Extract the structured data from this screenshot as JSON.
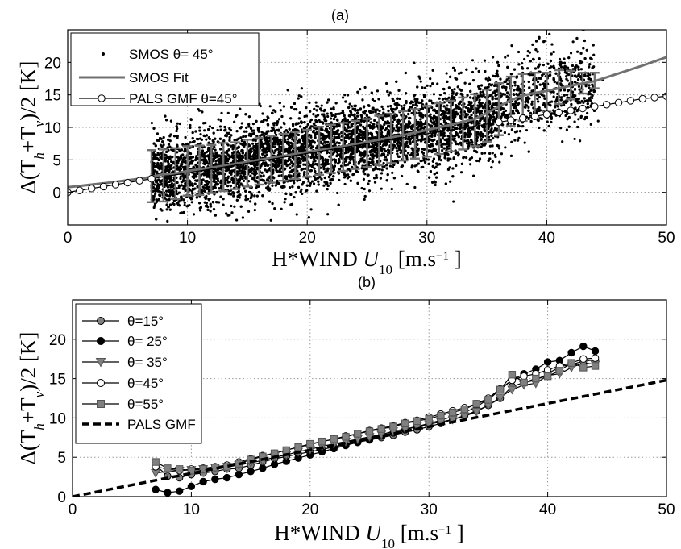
{
  "chart_data": [
    {
      "panel_label": "(a)",
      "type": "scatter",
      "xlabel": "H*WIND U10 [m.s-1 ]",
      "ylabel": "Δ(Th+Tv)/2 [K]",
      "xlim": [
        0,
        50
      ],
      "ylim": [
        -5,
        25
      ],
      "xticks": [
        "0",
        "10",
        "20",
        "30",
        "40",
        "50"
      ],
      "yticks": [
        "0",
        "5",
        "10",
        "15",
        "20"
      ],
      "grid": true,
      "legend_position": "top-left",
      "legend": [
        "SMOS θ= 45°",
        "SMOS Fit",
        "PALS GMF θ=45°"
      ],
      "series": [
        {
          "name": "SMOS θ= 45°",
          "style": "dots",
          "color": "#000000",
          "description_points": "dense cloud from U10≈7 to 44",
          "sample": {
            "x_range": [
              7,
              44
            ],
            "mean_line": [
              [
                7,
                2.5
              ],
              [
                10,
                3.3
              ],
              [
                15,
                4.8
              ],
              [
                20,
                6.3
              ],
              [
                25,
                7.8
              ],
              [
                30,
                9.6
              ],
              [
                34,
                11.5
              ],
              [
                37,
                14
              ],
              [
                40,
                16
              ],
              [
                44,
                17
              ]
            ],
            "spread": 4
          }
        },
        {
          "name": "SMOS Fit",
          "style": "line",
          "color": "#707070",
          "x": [
            0,
            3,
            6,
            7,
            8,
            9,
            10,
            12,
            14,
            16,
            18,
            20,
            22,
            24,
            26,
            28,
            30,
            32,
            34,
            35,
            36,
            37,
            38,
            39,
            40,
            41,
            42,
            44,
            46,
            48,
            50
          ],
          "y": [
            0.8,
            1.4,
            2.1,
            2.4,
            2.8,
            2.9,
            3.3,
            3.8,
            4.4,
            5.0,
            5.6,
            6.2,
            6.8,
            7.4,
            8.1,
            8.8,
            9.6,
            10.4,
            11.3,
            12.2,
            13.2,
            14.2,
            14.9,
            15.3,
            15.6,
            16.0,
            16.4,
            17.1,
            18.3,
            19.5,
            20.8
          ]
        },
        {
          "name": "SMOS error bars",
          "style": "errorbar",
          "color": "#707070",
          "x": [
            7,
            8,
            9,
            10,
            11,
            12,
            13,
            14,
            15,
            16,
            17,
            18,
            19,
            20,
            21,
            22,
            23,
            24,
            25,
            26,
            27,
            28,
            29,
            30,
            31,
            32,
            33,
            34,
            35,
            36,
            37,
            38,
            39,
            40,
            41,
            42,
            43,
            44
          ],
          "y": [
            2.5,
            2.6,
            2.9,
            3.3,
            3.4,
            3.6,
            3.9,
            4.1,
            4.5,
            4.8,
            5.1,
            5.4,
            5.7,
            6.0,
            6.4,
            6.7,
            7.0,
            7.3,
            7.6,
            8.0,
            8.3,
            8.7,
            9.0,
            9.4,
            9.8,
            10.2,
            10.6,
            11.1,
            11.8,
            12.8,
            14.0,
            14.6,
            15.0,
            15.4,
            16.2,
            16.5,
            16.8,
            17.2
          ],
          "err": [
            4.0,
            4.0,
            3.9,
            3.8,
            3.8,
            3.7,
            3.7,
            3.6,
            3.6,
            3.6,
            3.6,
            3.6,
            3.6,
            3.6,
            3.7,
            3.7,
            3.7,
            3.7,
            3.7,
            3.8,
            3.8,
            3.8,
            3.8,
            3.9,
            3.9,
            3.9,
            4.0,
            4.0,
            4.0,
            4.0,
            3.8,
            3.6,
            3.4,
            3.0,
            2.6,
            2.2,
            1.6,
            1.2
          ]
        },
        {
          "name": "PALS GMF θ=45°",
          "style": "line-open-circles",
          "color": "#000000",
          "x": [
            0,
            1,
            2,
            3,
            4,
            5,
            6,
            7,
            8,
            9,
            10,
            11,
            12,
            13,
            14,
            15,
            16,
            17,
            18,
            19,
            20,
            21,
            22,
            23,
            24,
            25,
            26,
            27,
            28,
            29,
            30,
            31,
            32,
            33,
            34,
            35,
            36,
            37,
            38,
            39,
            40,
            41,
            42,
            43,
            44,
            45,
            46,
            47,
            48,
            49,
            50
          ],
          "y": [
            0.0,
            0.3,
            0.6,
            0.9,
            1.2,
            1.5,
            1.8,
            2.1,
            2.4,
            2.7,
            3.0,
            3.3,
            3.6,
            3.9,
            4.2,
            4.5,
            4.8,
            5.1,
            5.4,
            5.7,
            6.0,
            6.3,
            6.6,
            6.9,
            7.2,
            7.5,
            7.8,
            8.1,
            8.4,
            8.7,
            9.0,
            9.3,
            9.6,
            9.9,
            10.2,
            10.5,
            10.8,
            11.1,
            11.4,
            11.7,
            12.0,
            12.3,
            12.6,
            12.9,
            13.2,
            13.5,
            13.8,
            14.1,
            14.4,
            14.6,
            14.8
          ]
        }
      ]
    },
    {
      "panel_label": "(b)",
      "type": "line",
      "xlabel": "H*WIND U10 [m.s-1 ]",
      "ylabel": "Δ(Th+Tv)/2 [K]",
      "xlim": [
        0,
        50
      ],
      "ylim": [
        0,
        25
      ],
      "xticks": [
        "0",
        "10",
        "20",
        "30",
        "40",
        "50"
      ],
      "yticks": [
        "0",
        "5",
        "10",
        "15",
        "20"
      ],
      "grid": true,
      "legend_position": "top-left",
      "legend": [
        "θ=15°",
        "θ= 25°",
        "θ= 35°",
        "θ=45°",
        "θ=55°",
        "PALS GMF"
      ],
      "x": [
        7,
        8,
        9,
        10,
        11,
        12,
        13,
        14,
        15,
        16,
        17,
        18,
        19,
        20,
        21,
        22,
        23,
        24,
        25,
        26,
        27,
        28,
        29,
        30,
        31,
        32,
        33,
        34,
        35,
        36,
        37,
        38,
        39,
        40,
        41,
        42,
        43,
        44
      ],
      "series": [
        {
          "name": "θ=15°",
          "marker": "circle",
          "fill": "#808080",
          "y": [
            4.0,
            2.6,
            2.4,
            2.8,
            3.0,
            3.2,
            3.5,
            3.6,
            4.0,
            4.4,
            4.8,
            5.1,
            5.4,
            5.7,
            6.0,
            6.3,
            6.6,
            6.9,
            7.2,
            7.5,
            7.8,
            8.2,
            8.5,
            8.9,
            9.3,
            9.8,
            10.3,
            10.9,
            11.6,
            12.5,
            14.0,
            14.5,
            14.8,
            15.6,
            16.5,
            16.8,
            17.2,
            17.4
          ]
        },
        {
          "name": "θ= 25°",
          "marker": "circle",
          "fill": "#000000",
          "y": [
            0.9,
            0.5,
            0.7,
            1.3,
            1.9,
            2.2,
            2.4,
            2.8,
            3.2,
            3.6,
            4.1,
            4.5,
            4.9,
            5.3,
            5.7,
            6.1,
            6.5,
            6.9,
            7.3,
            7.7,
            8.1,
            8.5,
            8.9,
            9.3,
            9.7,
            10.2,
            10.7,
            11.4,
            12.4,
            13.6,
            14.8,
            15.6,
            16.2,
            17.1,
            17.3,
            18.3,
            19.1,
            18.5
          ]
        },
        {
          "name": "θ= 35°",
          "marker": "triangle-down",
          "fill": "#808080",
          "y": [
            3.0,
            3.2,
            3.3,
            3.4,
            3.5,
            3.7,
            3.8,
            4.0,
            4.3,
            4.6,
            5.0,
            5.3,
            5.7,
            6.0,
            6.4,
            6.7,
            7.0,
            7.3,
            7.6,
            7.9,
            8.3,
            8.6,
            8.9,
            9.2,
            9.5,
            9.8,
            10.2,
            10.8,
            11.6,
            12.6,
            13.6,
            14.2,
            14.4,
            15.4,
            15.6,
            16.4,
            17.0,
            16.8
          ]
        },
        {
          "name": "θ=45°",
          "marker": "circle",
          "fill": "#ffffff",
          "y": [
            3.8,
            3.5,
            3.3,
            3.5,
            3.6,
            3.8,
            4.0,
            4.4,
            4.8,
            5.2,
            5.5,
            5.9,
            6.3,
            6.6,
            7.0,
            7.3,
            7.7,
            8.0,
            8.4,
            8.7,
            9.0,
            9.4,
            9.7,
            10.1,
            10.5,
            10.9,
            11.3,
            11.8,
            12.5,
            13.7,
            14.8,
            15.3,
            15.6,
            16.1,
            16.6,
            17.0,
            17.5,
            17.6
          ]
        },
        {
          "name": "θ=55°",
          "marker": "square",
          "fill": "#808080",
          "y": [
            4.4,
            3.6,
            3.5,
            3.3,
            3.5,
            3.7,
            3.8,
            4.2,
            4.7,
            5.1,
            5.5,
            5.9,
            6.3,
            6.7,
            7.0,
            7.3,
            7.6,
            8.0,
            8.3,
            8.6,
            8.9,
            9.3,
            9.6,
            9.9,
            10.3,
            10.7,
            11.1,
            11.8,
            12.3,
            13.6,
            15.5,
            14.5,
            15.0,
            15.3,
            16.0,
            17.0,
            16.4,
            16.6
          ]
        },
        {
          "name": "PALS GMF",
          "style": "dashed",
          "color": "#000000",
          "x": [
            0,
            50
          ],
          "y": [
            0,
            14.8
          ]
        }
      ]
    }
  ]
}
